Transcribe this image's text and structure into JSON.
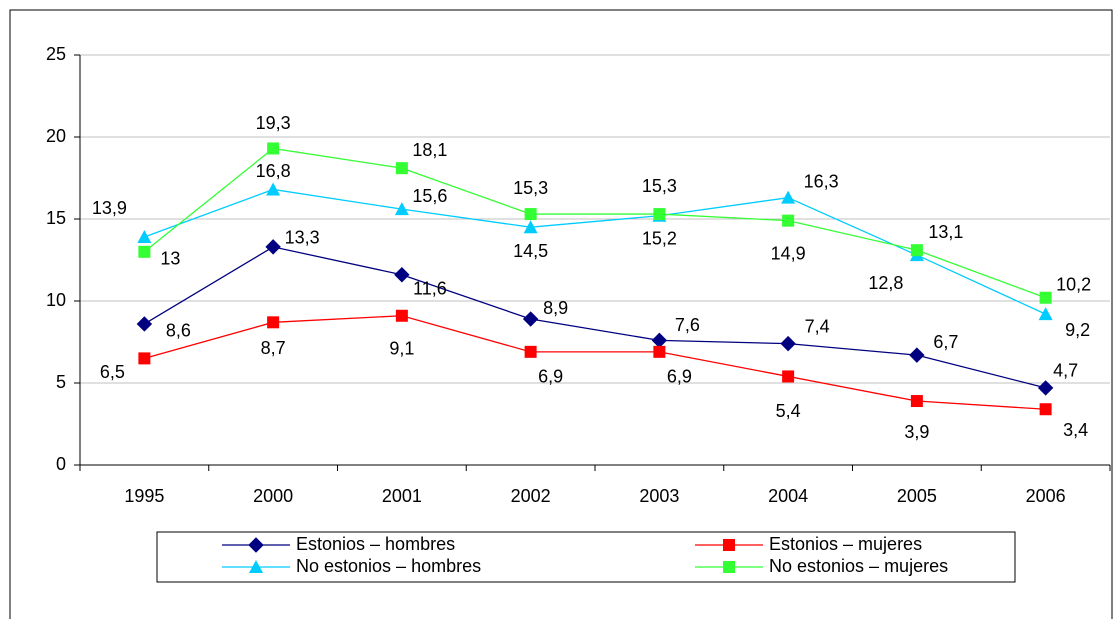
{
  "chart_data": {
    "type": "line",
    "categories": [
      "1995",
      "2000",
      "2001",
      "2002",
      "2003",
      "2004",
      "2005",
      "2006"
    ],
    "ylim": [
      0,
      25
    ],
    "yticks": [
      0,
      5,
      10,
      15,
      20,
      25
    ],
    "grid": true,
    "series": [
      {
        "name": "Estonios – hombres",
        "color": "#000080",
        "marker": "diamond",
        "values": [
          8.6,
          13.3,
          11.6,
          8.9,
          7.6,
          7.4,
          6.7,
          4.7
        ],
        "value_labels": [
          "8,6",
          "13,3",
          "11,6",
          "8,9",
          "7,6",
          "7,4",
          "6,7",
          "4,7"
        ]
      },
      {
        "name": "Estonios – mujeres",
        "color": "#ff0000",
        "marker": "square",
        "values": [
          6.5,
          8.7,
          9.1,
          6.9,
          6.9,
          5.4,
          3.9,
          3.4
        ],
        "value_labels": [
          "6,5",
          "8,7",
          "9,1",
          "6,9",
          "6,9",
          "5,4",
          "3,9",
          "3,4"
        ]
      },
      {
        "name": "No estonios – hombres",
        "color": "#00ccff",
        "marker": "triangle",
        "values": [
          13.9,
          16.8,
          15.6,
          14.5,
          15.2,
          16.3,
          12.8,
          9.2
        ],
        "value_labels": [
          "13,9",
          "16,8",
          "15,6",
          "14,5",
          "15,2",
          "16,3",
          "12,8",
          "9,2"
        ]
      },
      {
        "name": "No estonios – mujeres",
        "color": "#33ff33",
        "marker": "square",
        "values": [
          13,
          19.3,
          18.1,
          15.3,
          15.3,
          14.9,
          13.1,
          10.2
        ],
        "value_labels": [
          "13",
          "19,3",
          "18,1",
          "15,3",
          "15,3",
          "14,9",
          "13,1",
          "10,2"
        ]
      }
    ]
  }
}
